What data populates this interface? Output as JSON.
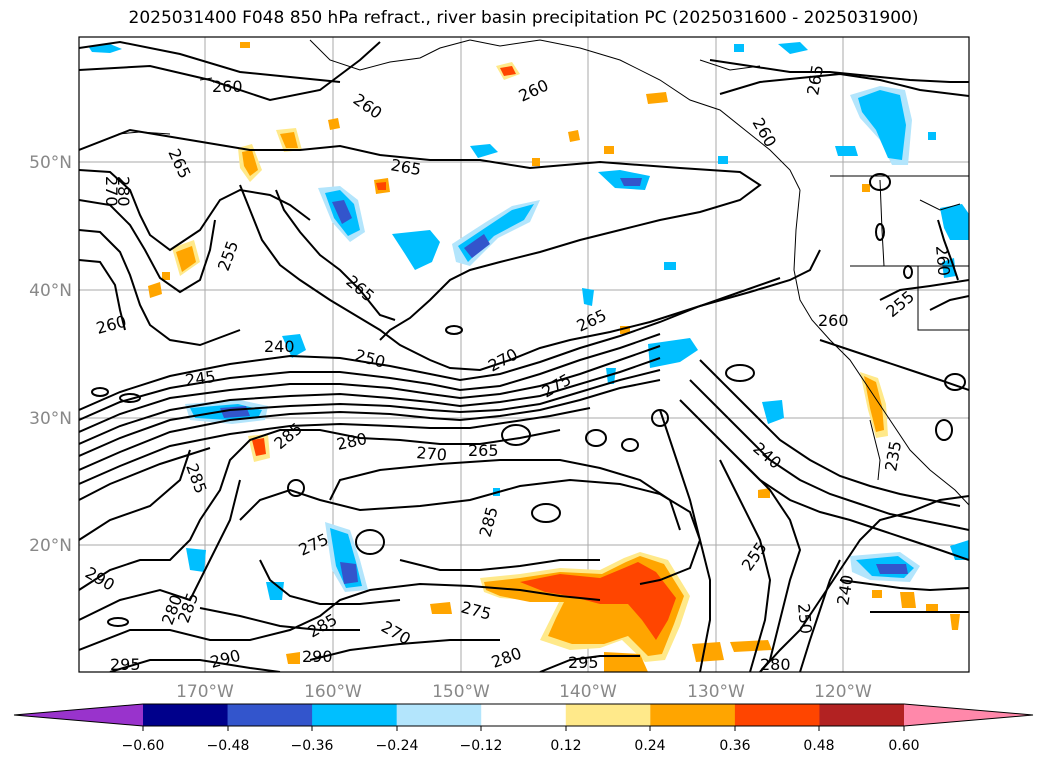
{
  "title": "2025031400 F048 850 hPa refract., river basin precipitation PC (2025031600 - 2025031900)",
  "latitude_labels": [
    "50°N",
    "40°N",
    "30°N",
    "20°N"
  ],
  "longitude_labels": [
    "170°W",
    "160°W",
    "150°W",
    "140°W",
    "130°W",
    "120°W"
  ],
  "contour_labels": [
    "260",
    "260",
    "260",
    "265",
    "265",
    "260",
    "265",
    "270",
    "280",
    "255",
    "265",
    "260",
    "240",
    "250",
    "245",
    "270",
    "275",
    "265",
    "285",
    "280",
    "270",
    "265",
    "285",
    "285",
    "240",
    "235",
    "255",
    "260",
    "255",
    "260",
    "275",
    "275",
    "290",
    "280",
    "285",
    "285",
    "270",
    "280",
    "290",
    "290",
    "295",
    "295",
    "250",
    "240",
    "280"
  ],
  "colorbar": {
    "tick_labels": [
      "−0.60",
      "−0.48",
      "−0.36",
      "−0.24",
      "−0.12",
      "0.12",
      "0.24",
      "0.36",
      "0.48",
      "0.60"
    ],
    "colors": [
      "#9933cc",
      "#00008b",
      "#3355cc",
      "#00bfff",
      "#b3e5fc",
      "#ffffff",
      "#ffe98a",
      "#ffa500",
      "#ff4500",
      "#b22222",
      "#ff88aa"
    ]
  }
}
